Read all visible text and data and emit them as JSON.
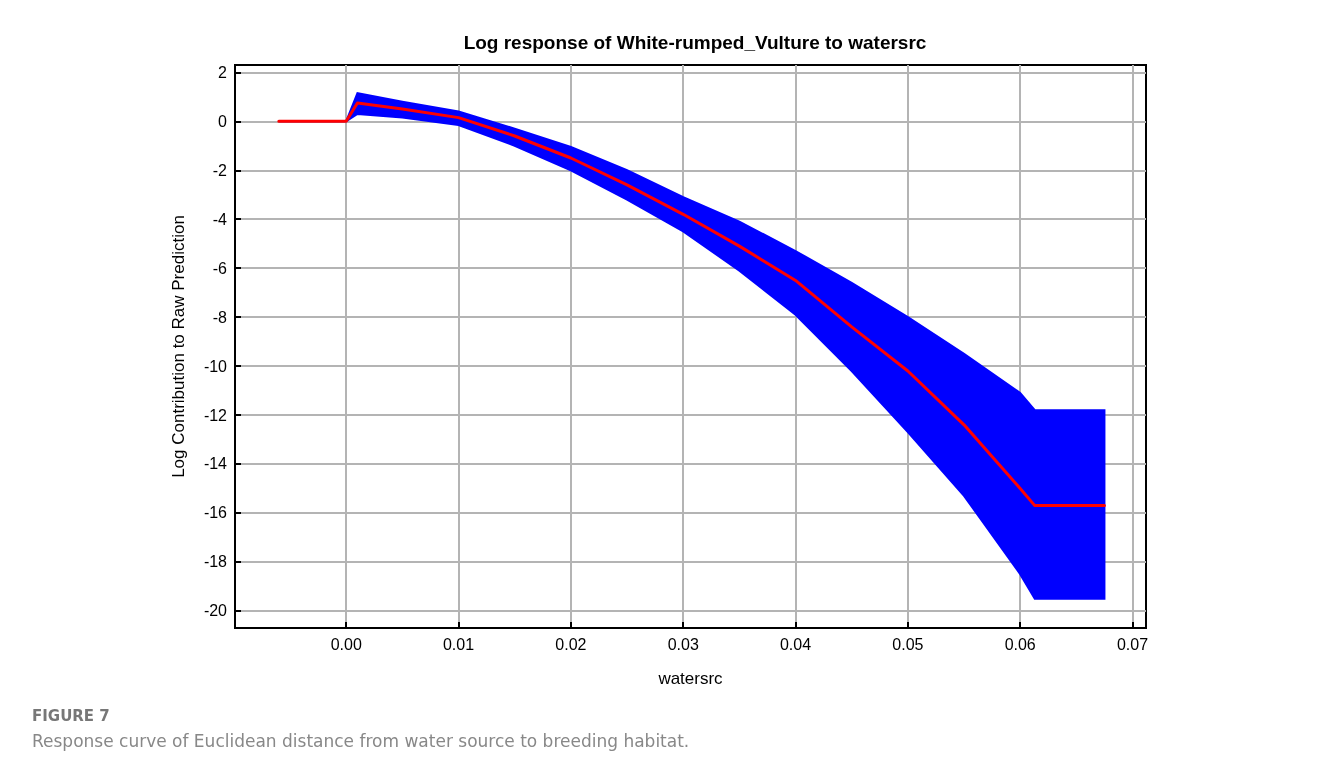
{
  "chart_data": {
    "type": "line",
    "title": "Log response of White-rumped_Vulture to watersrc",
    "xlabel": "watersrc",
    "ylabel": "Log Contribution to Raw Prediction",
    "annotations": [
      "FIGURE 7",
      "Response curve of Euclidean distance from water source to breeding habitat."
    ],
    "x": [
      -0.006,
      0,
      0.001,
      0.005,
      0.01,
      0.015,
      0.02,
      0.025,
      0.03,
      0.035,
      0.04,
      0.045,
      0.05,
      0.055,
      0.06,
      0.0613,
      0.0675
    ],
    "series": [
      {
        "color": "#ff0000",
        "values": [
          0,
          0,
          0.75,
          0.5,
          0.15,
          -0.6,
          -1.5,
          -2.6,
          -3.8,
          -5.1,
          -6.5,
          -8.4,
          -10.2,
          -12.4,
          -15.0,
          -15.7,
          -15.7
        ],
        "upper": [
          0,
          0,
          1.15,
          0.8,
          0.4,
          -0.3,
          -1.05,
          -2.0,
          -3.1,
          -4.1,
          -5.3,
          -6.6,
          -8.0,
          -9.5,
          -11.1,
          -11.8,
          -11.8
        ],
        "lower": [
          0,
          0,
          0.3,
          0.15,
          -0.15,
          -1.0,
          -2.0,
          -3.2,
          -4.5,
          -6.1,
          -7.9,
          -10.2,
          -12.7,
          -15.3,
          -18.5,
          -19.5,
          -19.5
        ]
      }
    ],
    "xlim": [
      -0.0099,
      0.0712
    ],
    "ylim": [
      -20.7,
      2.3
    ],
    "xticks": [
      {
        "value": 0,
        "label": "0.00"
      },
      {
        "value": 0.01,
        "label": "0.01"
      },
      {
        "value": 0.02,
        "label": "0.02"
      },
      {
        "value": 0.03,
        "label": "0.03"
      },
      {
        "value": 0.04,
        "label": "0.04"
      },
      {
        "value": 0.05,
        "label": "0.05"
      },
      {
        "value": 0.06,
        "label": "0.06"
      },
      {
        "value": 0.07,
        "label": "0.07"
      }
    ],
    "yticks": [
      -20,
      -18,
      -16,
      -14,
      -12,
      -10,
      -8,
      -6,
      -4,
      -2,
      0,
      2
    ],
    "grid": true,
    "marker": "none",
    "line_style": "solid"
  }
}
